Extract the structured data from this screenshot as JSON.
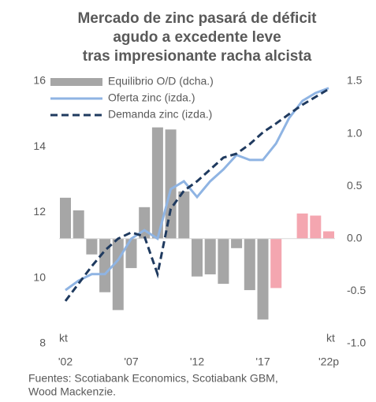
{
  "chart_data": {
    "type": "bar-line",
    "title": [
      "Mercado de zinc pasará de déficit",
      "agudo a excedente leve",
      "tras impresionante racha alcista"
    ],
    "categories": [
      "'02",
      null,
      null,
      null,
      null,
      "'07",
      null,
      null,
      null,
      null,
      "'12",
      null,
      null,
      null,
      null,
      "'17",
      null,
      null,
      null,
      null,
      "'22p"
    ],
    "series": [
      {
        "name": "Equilibrio O/D (dcha.)",
        "type": "bar",
        "axis": "y2",
        "color": "#a6a6a6",
        "colors": [
          "#a6a6a6",
          "#a6a6a6",
          "#a6a6a6",
          "#a6a6a6",
          "#a6a6a6",
          "#a6a6a6",
          "#a6a6a6",
          "#a6a6a6",
          "#a6a6a6",
          "#a6a6a6",
          "#a6a6a6",
          "#a6a6a6",
          "#a6a6a6",
          "#a6a6a6",
          "#a6a6a6",
          "#a6a6a6",
          "#f4a6b0",
          "#f4a6b0",
          "#f4a6b0",
          "#f4a6b0",
          "#f4a6b0"
        ],
        "values": [
          0.39,
          0.27,
          -0.15,
          -0.51,
          -0.68,
          -0.28,
          0.3,
          1.06,
          1.04,
          0.45,
          -0.36,
          -0.34,
          -0.43,
          -0.09,
          -0.49,
          -0.77,
          -0.47,
          null,
          0.24,
          0.22,
          0.07
        ]
      },
      {
        "name": "Oferta zinc (izda.)",
        "type": "line",
        "color": "#8fb4e3",
        "dash": false,
        "values": [
          9.63,
          9.92,
          10.12,
          10.12,
          10.55,
          11.2,
          11.46,
          11.2,
          12.71,
          12.95,
          12.47,
          12.95,
          13.31,
          13.75,
          13.6,
          13.6,
          14.1,
          14.88,
          15.4,
          15.64,
          15.79
        ]
      },
      {
        "name": "Demanda zinc (izda.)",
        "type": "line",
        "color": "#1f3a5f",
        "dash": true,
        "values": [
          9.3,
          9.83,
          10.36,
          10.84,
          11.2,
          11.39,
          11.27,
          10.12,
          12.11,
          12.66,
          12.95,
          13.31,
          13.67,
          13.79,
          14.08,
          14.44,
          14.71,
          15.0,
          15.28,
          15.52,
          15.76
        ]
      }
    ],
    "ylim": [
      8,
      16
    ],
    "yticks": [
      8,
      10,
      12,
      14,
      16
    ],
    "y2lim": [
      -1,
      1.5
    ],
    "y2ticks": [
      1.5,
      {
        "value": 1,
        "label": "1.0"
      },
      0.5,
      {
        "value": 0,
        "label": "0.0"
      },
      -0.5,
      {
        "value": -1,
        "label": "-1.0"
      }
    ],
    "y_unit": "kt",
    "y2_unit": "kt",
    "source": [
      "Fuentes: Scotiabank Economics, Scotiabank GBM,",
      "Wood Mackenzie."
    ]
  }
}
